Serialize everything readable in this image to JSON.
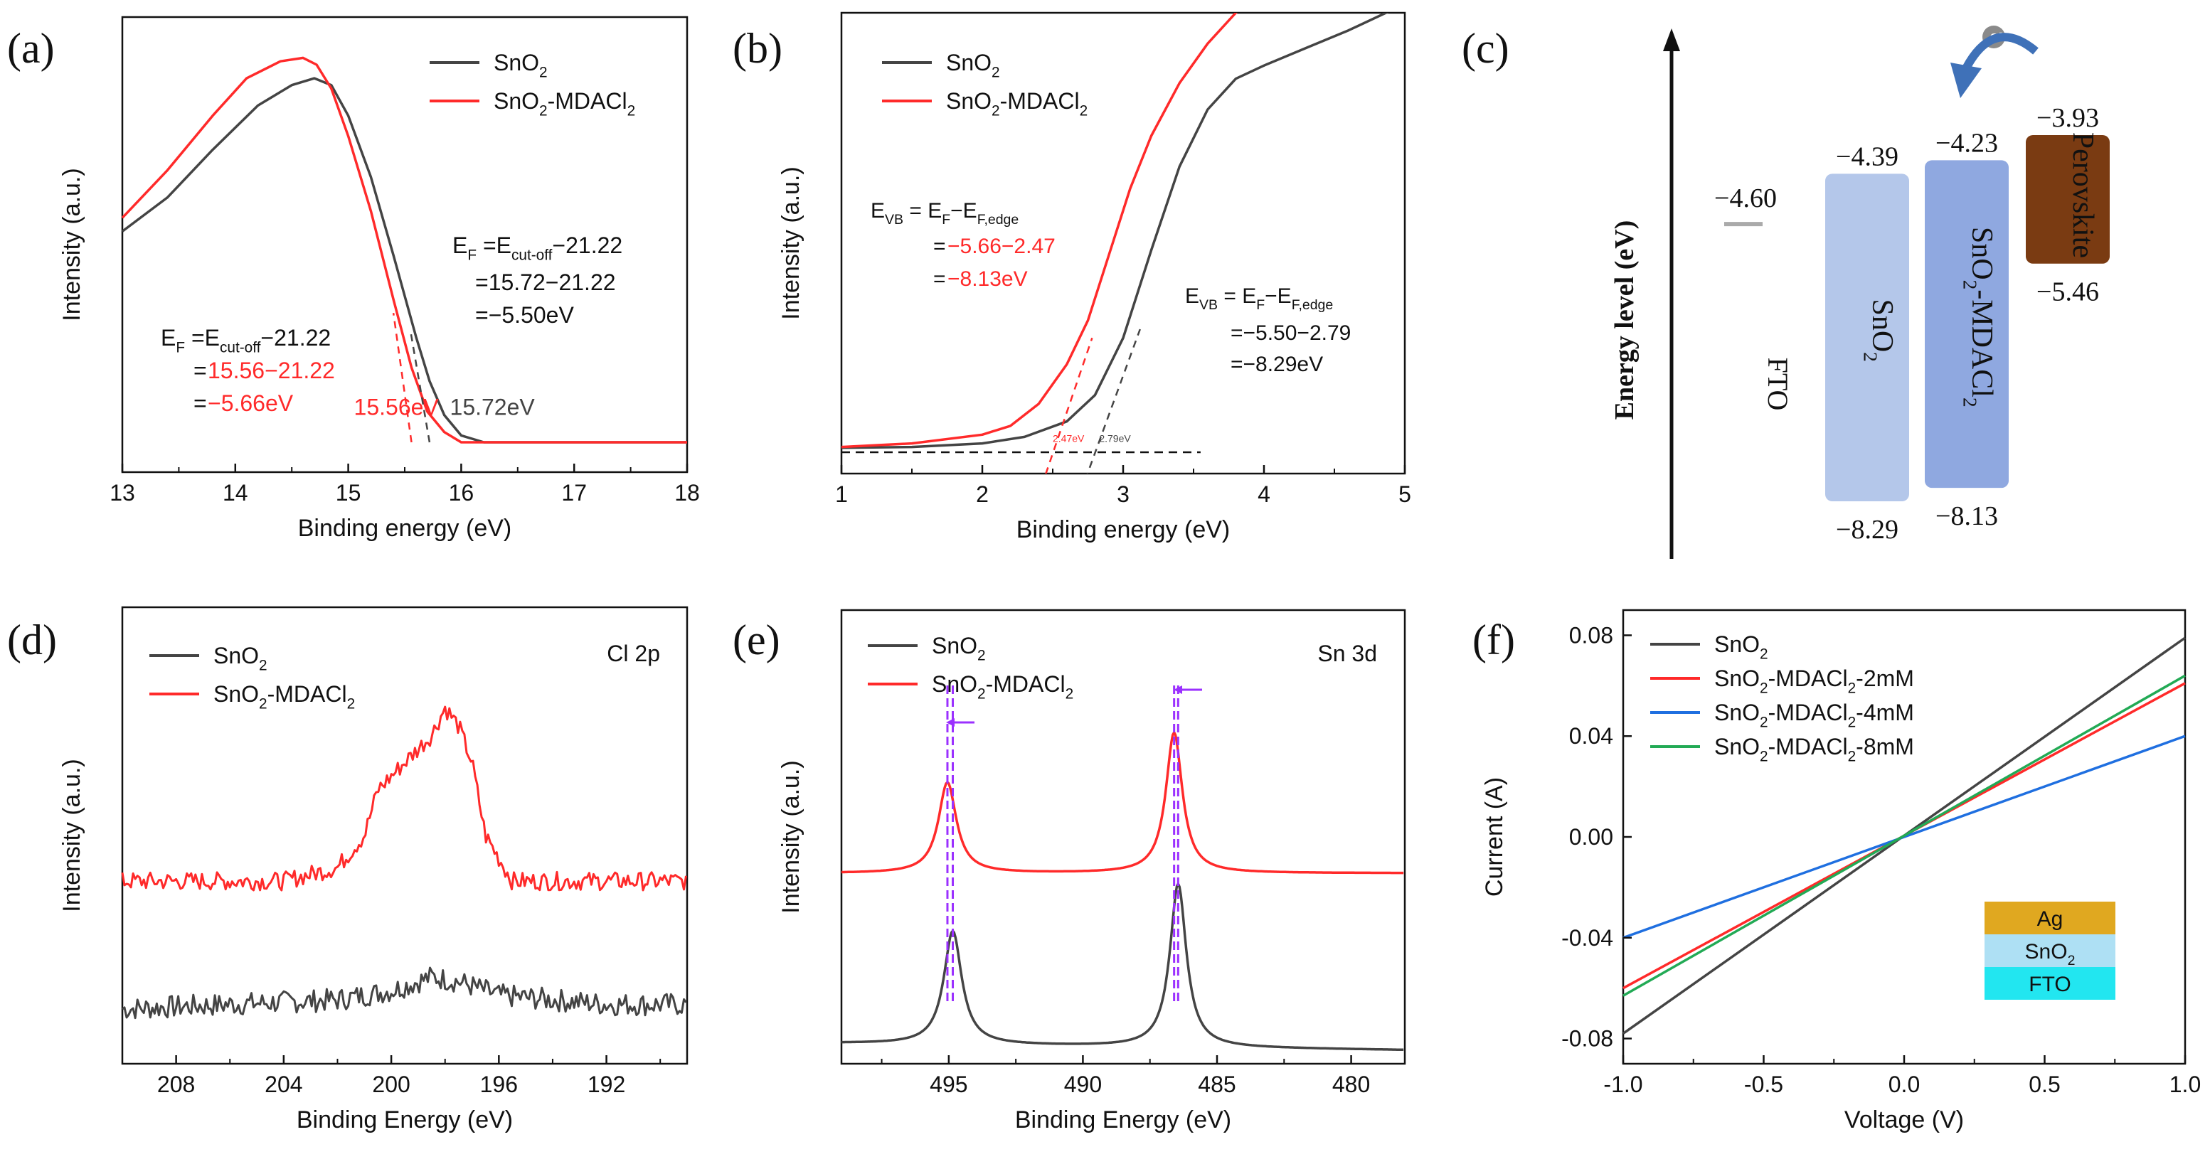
{
  "figure": "six-panel figure",
  "colors": {
    "black": "#444444",
    "red": "#ff2a2a",
    "blue": "#1f6fe0",
    "green": "#22aa55",
    "purple": "#9b30ff",
    "fto": "#aaaaaa",
    "sno2": "#b4c7ea",
    "mdacl2": "#8fa8e0",
    "perov": "#7a3b12",
    "ag": "#e0a820",
    "sno2_layer": "#aee0f4",
    "fto_layer": "#22e6f0",
    "arrow_blue": "#3f71b8"
  },
  "chart_data": [
    {
      "panel": "a",
      "panel_label": "(a)",
      "type": "line",
      "xlabel": "Binding energy (eV)",
      "ylabel": "Intensity (a.u.)",
      "xlim": [
        13,
        18
      ],
      "ylim": [
        0,
        1.25
      ],
      "xticks": [
        "13",
        "14",
        "15",
        "16",
        "17",
        "18"
      ],
      "legend": [
        "SnO2",
        "SnO2-MDACl2"
      ],
      "legend_position": "top-right",
      "series": [
        {
          "name": "SnO2",
          "color": "#444444",
          "x": [
            13,
            13.4,
            13.8,
            14.2,
            14.5,
            14.7,
            14.85,
            15.0,
            15.2,
            15.4,
            15.6,
            15.72,
            15.85,
            16.0,
            16.2,
            16.5,
            17,
            18
          ],
          "y": [
            0.62,
            0.72,
            0.86,
            0.99,
            1.05,
            1.07,
            1.05,
            0.96,
            0.78,
            0.55,
            0.31,
            0.18,
            0.08,
            0.02,
            0.0,
            0.0,
            0.0,
            0.0
          ]
        },
        {
          "name": "SnO2-MDACl2",
          "color": "#ff2a2a",
          "x": [
            13,
            13.4,
            13.8,
            14.1,
            14.4,
            14.6,
            14.72,
            14.85,
            15.0,
            15.2,
            15.4,
            15.56,
            15.7,
            15.85,
            16.0,
            16.2,
            16.5,
            17,
            18
          ],
          "y": [
            0.66,
            0.8,
            0.96,
            1.07,
            1.12,
            1.13,
            1.11,
            1.04,
            0.9,
            0.68,
            0.42,
            0.22,
            0.09,
            0.03,
            0.0,
            0.0,
            0.0,
            0.0,
            0.0
          ]
        }
      ],
      "guides": [
        {
          "x": [
            15.56,
            15.4
          ],
          "y": [
            0.0,
            0.38
          ],
          "color": "#ff2a2a"
        },
        {
          "x": [
            15.72,
            15.55
          ],
          "y": [
            0.0,
            0.33
          ],
          "color": "#444444"
        }
      ],
      "annotations": [
        {
          "text": "15.56eV",
          "x": 15.05,
          "y": 0.06,
          "color": "#ff2a2a"
        },
        {
          "text": "15.72eV",
          "x": 15.9,
          "y": 0.06,
          "color": "#444444"
        }
      ],
      "eq_black": {
        "line1_main": "E",
        "line1_sub": "F",
        "line1_mid": " =E",
        "line1_sub2": "cut-off",
        "line1_end": "−21.22",
        "line2": "=15.72−21.22",
        "line3": "=−5.50eV"
      },
      "eq_red": {
        "line1_main": "E",
        "line1_sub": "F",
        "line1_mid": " =E",
        "line1_sub2": "cut-off",
        "line1_end": "−21.22",
        "line2": "=15.56−21.22",
        "line3": "=−5.66eV"
      }
    },
    {
      "panel": "b",
      "panel_label": "(b)",
      "type": "line",
      "xlabel": "Binding energy (eV)",
      "ylabel": "Intensity (a.u.)",
      "xlim": [
        1,
        5
      ],
      "ylim": [
        0,
        1.0
      ],
      "xticks": [
        "1",
        "2",
        "3",
        "4",
        "5"
      ],
      "legend": [
        "SnO2",
        "SnO2-MDACl2"
      ],
      "legend_position": "top-left",
      "series": [
        {
          "name": "SnO2",
          "color": "#444444",
          "x": [
            1,
            1.5,
            2,
            2.3,
            2.6,
            2.8,
            3.0,
            3.2,
            3.4,
            3.6,
            3.8,
            4.0,
            4.3,
            4.6,
            5.0
          ],
          "y": [
            0.01,
            0.012,
            0.02,
            0.035,
            0.07,
            0.13,
            0.26,
            0.46,
            0.65,
            0.78,
            0.85,
            0.88,
            0.92,
            0.96,
            1.02
          ]
        },
        {
          "name": "SnO2-MDACl2",
          "color": "#ff2a2a",
          "x": [
            1,
            1.5,
            2,
            2.2,
            2.4,
            2.6,
            2.75,
            2.9,
            3.05,
            3.2,
            3.4,
            3.6,
            3.8,
            3.9
          ],
          "y": [
            0.012,
            0.02,
            0.04,
            0.06,
            0.11,
            0.2,
            0.3,
            0.45,
            0.6,
            0.72,
            0.84,
            0.93,
            1.0,
            1.03
          ]
        }
      ],
      "baseline": {
        "x": [
          1,
          3.55
        ],
        "y": [
          0.0,
          0.0
        ]
      },
      "guides": [
        {
          "x": [
            2.45,
            2.78
          ],
          "y": [
            -0.05,
            0.26
          ],
          "color": "#ff2a2a"
        },
        {
          "x": [
            2.7,
            3.12
          ],
          "y": [
            -0.09,
            0.28
          ],
          "color": "#444444"
        }
      ],
      "small_labels": [
        {
          "text": "2.47eV",
          "x": 2.5,
          "y": 0.02,
          "color": "#ff2a2a"
        },
        {
          "text": "2.79eV",
          "x": 2.83,
          "y": 0.02,
          "color": "#444444"
        }
      ],
      "eq_red": {
        "line1_main": "E",
        "line1_sub": "VB",
        "line1_mid": " = E",
        "line1_sub2": "F",
        "line1_mid2": "−E",
        "line1_sub3": "F,edge",
        "line2": "=−5.66−2.47",
        "line3": "=−8.13eV"
      },
      "eq_black": {
        "line1_main": "E",
        "line1_sub": "VB",
        "line1_mid": " = E",
        "line1_sub2": "F",
        "line1_mid2": "−E",
        "line1_sub3": "F,edge",
        "line2": "=−5.50−2.79",
        "line3": "=−8.29eV"
      }
    },
    {
      "panel": "c",
      "panel_label": "(c)",
      "type": "diagram",
      "ylabel": "Energy level (eV)",
      "electron": "e",
      "electron_sup": "-",
      "levels": [
        {
          "name": "FTO",
          "value": -4.6,
          "label": "−4.60",
          "color": "#aaaaaa"
        },
        {
          "name": "SnO2",
          "top": -4.39,
          "bottom": -8.29,
          "top_label": "−4.39",
          "bottom_label": "−8.29",
          "color": "#b4c7ea"
        },
        {
          "name": "SnO2-MDACl2",
          "top": -4.23,
          "bottom": -8.13,
          "top_label": "−4.23",
          "bottom_label": "−8.13",
          "color": "#8fa8e0"
        },
        {
          "name": "Perovskite",
          "top": -3.93,
          "bottom": -5.46,
          "top_label": "−3.93",
          "bottom_label": "−5.46",
          "color": "#7a3b12"
        }
      ]
    },
    {
      "panel": "d",
      "panel_label": "(d)",
      "type": "line",
      "xlabel": "Binding Energy (eV)",
      "ylabel": "Intensity (a.u.)",
      "xlim": [
        210,
        189
      ],
      "ylim": [
        0,
        1.0
      ],
      "xticks": [
        "208",
        "204",
        "200",
        "196",
        "192"
      ],
      "corner_text": "Cl 2p",
      "legend": [
        "SnO2",
        "SnO2-MDACl2"
      ],
      "legend_position": "top-left",
      "series": [
        {
          "name": "SnO2",
          "color": "#444444",
          "x": [
            210,
            206,
            202,
            200,
            198.5,
            197.5,
            196,
            194,
            192,
            189
          ],
          "y": [
            0.12,
            0.13,
            0.14,
            0.16,
            0.19,
            0.18,
            0.15,
            0.14,
            0.13,
            0.13
          ],
          "noise": 0.025
        },
        {
          "name": "SnO2-MDACl2",
          "color": "#ff2a2a",
          "x": [
            210,
            204,
            202,
            201,
            200.5,
            199.5,
            198.5,
            198,
            197.5,
            197,
            196.5,
            195.5,
            194,
            192,
            189
          ],
          "y": [
            0.4,
            0.4,
            0.43,
            0.5,
            0.6,
            0.66,
            0.72,
            0.78,
            0.74,
            0.66,
            0.5,
            0.4,
            0.4,
            0.4,
            0.4
          ],
          "noise": 0.02
        }
      ]
    },
    {
      "panel": "e",
      "panel_label": "(e)",
      "type": "line",
      "xlabel": "Binding Energy (eV)",
      "ylabel": "Intensity (a.u.)",
      "xlim": [
        499,
        478
      ],
      "ylim": [
        0,
        1.0
      ],
      "xticks": [
        "495",
        "490",
        "485",
        "480"
      ],
      "corner_text": "Sn 3d",
      "legend": [
        "SnO2",
        "SnO2-MDACl2"
      ],
      "legend_position": "top-left",
      "series": [
        {
          "name": "SnO2",
          "color": "#444444",
          "base": 0.03,
          "tilt": 0.015,
          "peaks": [
            {
              "center": 494.85,
              "height": 0.25,
              "width": 0.6
            },
            {
              "center": 486.45,
              "height": 0.36,
              "width": 0.55
            }
          ]
        },
        {
          "name": "SnO2-MDACl2",
          "color": "#ff2a2a",
          "base": 0.42,
          "tilt": 0.0,
          "peaks": [
            {
              "center": 495.05,
              "height": 0.2,
              "width": 0.6
            },
            {
              "center": 486.6,
              "height": 0.31,
              "width": 0.55
            }
          ]
        }
      ],
      "guides_x": [
        495.05,
        494.85,
        486.6,
        486.45
      ],
      "guide_color": "#9b30ff"
    },
    {
      "panel": "f",
      "panel_label": "(f)",
      "type": "line",
      "xlabel": "Voltage (V)",
      "ylabel": "Current (A)",
      "xlim": [
        -1,
        1
      ],
      "ylim": [
        -0.09,
        0.09
      ],
      "xticks": [
        "-1.0",
        "-0.5",
        "0.0",
        "0.5",
        "1.0"
      ],
      "yticks": [
        "-0.08",
        "-0.04",
        "0.00",
        "0.04",
        "0.08"
      ],
      "legend": [
        "SnO2",
        "SnO2-MDACl2-2mM",
        "SnO2-MDACl2-4mM",
        "SnO2-MDACl2-8mM"
      ],
      "legend_position": "top-left",
      "series": [
        {
          "name": "SnO2",
          "color": "#444444",
          "x": [
            -1,
            1
          ],
          "y": [
            -0.078,
            0.079
          ]
        },
        {
          "name": "SnO2-MDACl2-2mM",
          "color": "#ff2a2a",
          "x": [
            -1,
            1
          ],
          "y": [
            -0.06,
            0.061
          ]
        },
        {
          "name": "SnO2-MDACl2-4mM",
          "color": "#1f6fe0",
          "x": [
            -1,
            1
          ],
          "y": [
            -0.04,
            0.04
          ]
        },
        {
          "name": "SnO2-MDACl2-8mM",
          "color": "#22aa55",
          "x": [
            -1,
            1
          ],
          "y": [
            -0.063,
            0.064
          ]
        }
      ],
      "stack": [
        "Ag",
        "SnO2",
        "FTO"
      ]
    }
  ]
}
